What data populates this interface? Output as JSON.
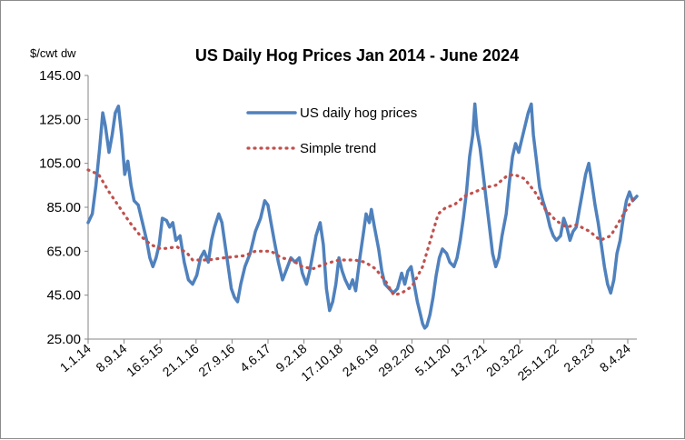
{
  "chart_data": {
    "type": "line",
    "title": "US Daily Hog Prices Jan 2014 - June 2024",
    "ylabel": "$/cwt dw",
    "xlabel": "",
    "ylim": [
      25,
      145
    ],
    "yticks": [
      "25.00",
      "45.00",
      "65.00",
      "85.00",
      "105.00",
      "125.00",
      "145.00"
    ],
    "xticks": [
      "1.1.14",
      "8.9.14",
      "16.5.15",
      "21.1.16",
      "27.9.16",
      "4.6.17",
      "9.2.18",
      "17.10.18",
      "24.6.19",
      "29.2.20",
      "5.11.20",
      "13.7.21",
      "20.3.22",
      "25.11.22",
      "2.8.23",
      "8.4.24"
    ],
    "legend_position": "top-center",
    "grid": false,
    "colors": {
      "series_1": "#4f81bd",
      "series_2": "#c0504d",
      "axis": "#868686"
    },
    "x_range": [
      2014.0,
      2024.5
    ],
    "series": [
      {
        "name": "US daily hog prices",
        "style": "solid",
        "points": [
          [
            2014.0,
            78
          ],
          [
            2014.08,
            82
          ],
          [
            2014.15,
            95
          ],
          [
            2014.22,
            112
          ],
          [
            2014.28,
            128
          ],
          [
            2014.33,
            122
          ],
          [
            2014.4,
            110
          ],
          [
            2014.46,
            118
          ],
          [
            2014.52,
            128
          ],
          [
            2014.58,
            131
          ],
          [
            2014.64,
            118
          ],
          [
            2014.7,
            100
          ],
          [
            2014.76,
            106
          ],
          [
            2014.82,
            95
          ],
          [
            2014.88,
            88
          ],
          [
            2014.96,
            86
          ],
          [
            2015.05,
            77
          ],
          [
            2015.12,
            70
          ],
          [
            2015.18,
            62
          ],
          [
            2015.24,
            58
          ],
          [
            2015.3,
            62
          ],
          [
            2015.36,
            68
          ],
          [
            2015.42,
            80
          ],
          [
            2015.5,
            79
          ],
          [
            2015.56,
            76
          ],
          [
            2015.62,
            78
          ],
          [
            2015.68,
            70
          ],
          [
            2015.76,
            72
          ],
          [
            2015.84,
            60
          ],
          [
            2015.92,
            52
          ],
          [
            2016.0,
            50
          ],
          [
            2016.08,
            54
          ],
          [
            2016.15,
            62
          ],
          [
            2016.22,
            65
          ],
          [
            2016.3,
            60
          ],
          [
            2016.36,
            70
          ],
          [
            2016.42,
            76
          ],
          [
            2016.5,
            82
          ],
          [
            2016.56,
            78
          ],
          [
            2016.62,
            68
          ],
          [
            2016.68,
            58
          ],
          [
            2016.74,
            48
          ],
          [
            2016.8,
            44
          ],
          [
            2016.86,
            42
          ],
          [
            2016.92,
            50
          ],
          [
            2017.0,
            58
          ],
          [
            2017.1,
            64
          ],
          [
            2017.2,
            74
          ],
          [
            2017.3,
            80
          ],
          [
            2017.38,
            88
          ],
          [
            2017.44,
            86
          ],
          [
            2017.5,
            78
          ],
          [
            2017.56,
            70
          ],
          [
            2017.64,
            60
          ],
          [
            2017.72,
            52
          ],
          [
            2017.8,
            57
          ],
          [
            2017.88,
            62
          ],
          [
            2017.96,
            60
          ],
          [
            2018.04,
            62
          ],
          [
            2018.1,
            55
          ],
          [
            2018.18,
            50
          ],
          [
            2018.24,
            56
          ],
          [
            2018.3,
            64
          ],
          [
            2018.36,
            72
          ],
          [
            2018.44,
            78
          ],
          [
            2018.5,
            68
          ],
          [
            2018.56,
            48
          ],
          [
            2018.62,
            38
          ],
          [
            2018.68,
            42
          ],
          [
            2018.74,
            50
          ],
          [
            2018.8,
            62
          ],
          [
            2018.86,
            56
          ],
          [
            2018.92,
            52
          ],
          [
            2019.0,
            48
          ],
          [
            2019.06,
            52
          ],
          [
            2019.12,
            47
          ],
          [
            2019.2,
            62
          ],
          [
            2019.26,
            72
          ],
          [
            2019.32,
            82
          ],
          [
            2019.38,
            78
          ],
          [
            2019.42,
            84
          ],
          [
            2019.48,
            76
          ],
          [
            2019.56,
            66
          ],
          [
            2019.62,
            56
          ],
          [
            2019.68,
            50
          ],
          [
            2019.76,
            48
          ],
          [
            2019.84,
            46
          ],
          [
            2019.92,
            48
          ],
          [
            2020.0,
            55
          ],
          [
            2020.06,
            50
          ],
          [
            2020.12,
            56
          ],
          [
            2020.18,
            58
          ],
          [
            2020.24,
            50
          ],
          [
            2020.3,
            42
          ],
          [
            2020.36,
            36
          ],
          [
            2020.4,
            32
          ],
          [
            2020.44,
            30
          ],
          [
            2020.48,
            31
          ],
          [
            2020.54,
            36
          ],
          [
            2020.6,
            44
          ],
          [
            2020.66,
            54
          ],
          [
            2020.72,
            62
          ],
          [
            2020.78,
            66
          ],
          [
            2020.86,
            64
          ],
          [
            2020.92,
            60
          ],
          [
            2021.0,
            58
          ],
          [
            2021.06,
            62
          ],
          [
            2021.12,
            70
          ],
          [
            2021.18,
            80
          ],
          [
            2021.24,
            92
          ],
          [
            2021.3,
            108
          ],
          [
            2021.36,
            118
          ],
          [
            2021.4,
            132
          ],
          [
            2021.44,
            120
          ],
          [
            2021.5,
            112
          ],
          [
            2021.56,
            100
          ],
          [
            2021.62,
            88
          ],
          [
            2021.68,
            76
          ],
          [
            2021.74,
            64
          ],
          [
            2021.8,
            58
          ],
          [
            2021.86,
            62
          ],
          [
            2021.92,
            72
          ],
          [
            2022.0,
            82
          ],
          [
            2022.06,
            96
          ],
          [
            2022.12,
            108
          ],
          [
            2022.18,
            114
          ],
          [
            2022.24,
            110
          ],
          [
            2022.3,
            116
          ],
          [
            2022.36,
            122
          ],
          [
            2022.42,
            128
          ],
          [
            2022.48,
            132
          ],
          [
            2022.52,
            118
          ],
          [
            2022.58,
            106
          ],
          [
            2022.64,
            94
          ],
          [
            2022.7,
            88
          ],
          [
            2022.78,
            82
          ],
          [
            2022.84,
            76
          ],
          [
            2022.9,
            72
          ],
          [
            2022.96,
            70
          ],
          [
            2023.04,
            72
          ],
          [
            2023.1,
            80
          ],
          [
            2023.16,
            76
          ],
          [
            2023.22,
            70
          ],
          [
            2023.28,
            74
          ],
          [
            2023.34,
            76
          ],
          [
            2023.4,
            84
          ],
          [
            2023.46,
            92
          ],
          [
            2023.52,
            100
          ],
          [
            2023.58,
            105
          ],
          [
            2023.64,
            96
          ],
          [
            2023.7,
            86
          ],
          [
            2023.76,
            78
          ],
          [
            2023.82,
            68
          ],
          [
            2023.88,
            58
          ],
          [
            2023.94,
            50
          ],
          [
            2024.0,
            46
          ],
          [
            2024.06,
            52
          ],
          [
            2024.12,
            64
          ],
          [
            2024.18,
            70
          ],
          [
            2024.24,
            80
          ],
          [
            2024.3,
            88
          ],
          [
            2024.36,
            92
          ],
          [
            2024.42,
            88
          ],
          [
            2024.5,
            90
          ]
        ]
      },
      {
        "name": "Simple trend",
        "style": "dotted",
        "points": [
          [
            2014.0,
            102
          ],
          [
            2014.2,
            100
          ],
          [
            2014.4,
            92
          ],
          [
            2014.6,
            85
          ],
          [
            2014.8,
            78
          ],
          [
            2015.0,
            72
          ],
          [
            2015.2,
            68
          ],
          [
            2015.4,
            66
          ],
          [
            2015.7,
            67
          ],
          [
            2015.9,
            64
          ],
          [
            2016.0,
            61
          ],
          [
            2016.3,
            61
          ],
          [
            2016.6,
            62
          ],
          [
            2017.0,
            63
          ],
          [
            2017.2,
            65
          ],
          [
            2017.5,
            65
          ],
          [
            2017.7,
            62
          ],
          [
            2017.9,
            61
          ],
          [
            2018.1,
            58
          ],
          [
            2018.3,
            57
          ],
          [
            2018.5,
            59
          ],
          [
            2018.8,
            61
          ],
          [
            2019.1,
            61
          ],
          [
            2019.3,
            60
          ],
          [
            2019.5,
            57
          ],
          [
            2019.7,
            51
          ],
          [
            2019.85,
            45
          ],
          [
            2020.0,
            46
          ],
          [
            2020.2,
            49
          ],
          [
            2020.4,
            58
          ],
          [
            2020.55,
            70
          ],
          [
            2020.7,
            82
          ],
          [
            2020.85,
            85
          ],
          [
            2021.0,
            86
          ],
          [
            2021.2,
            90
          ],
          [
            2021.4,
            92
          ],
          [
            2021.6,
            94
          ],
          [
            2021.8,
            95
          ],
          [
            2022.0,
            99
          ],
          [
            2022.15,
            100
          ],
          [
            2022.35,
            98
          ],
          [
            2022.55,
            92
          ],
          [
            2022.75,
            84
          ],
          [
            2022.95,
            79
          ],
          [
            2023.15,
            76
          ],
          [
            2023.35,
            77
          ],
          [
            2023.6,
            74
          ],
          [
            2023.8,
            70
          ],
          [
            2024.0,
            72
          ],
          [
            2024.2,
            80
          ],
          [
            2024.4,
            88
          ],
          [
            2024.5,
            90
          ]
        ]
      }
    ]
  }
}
